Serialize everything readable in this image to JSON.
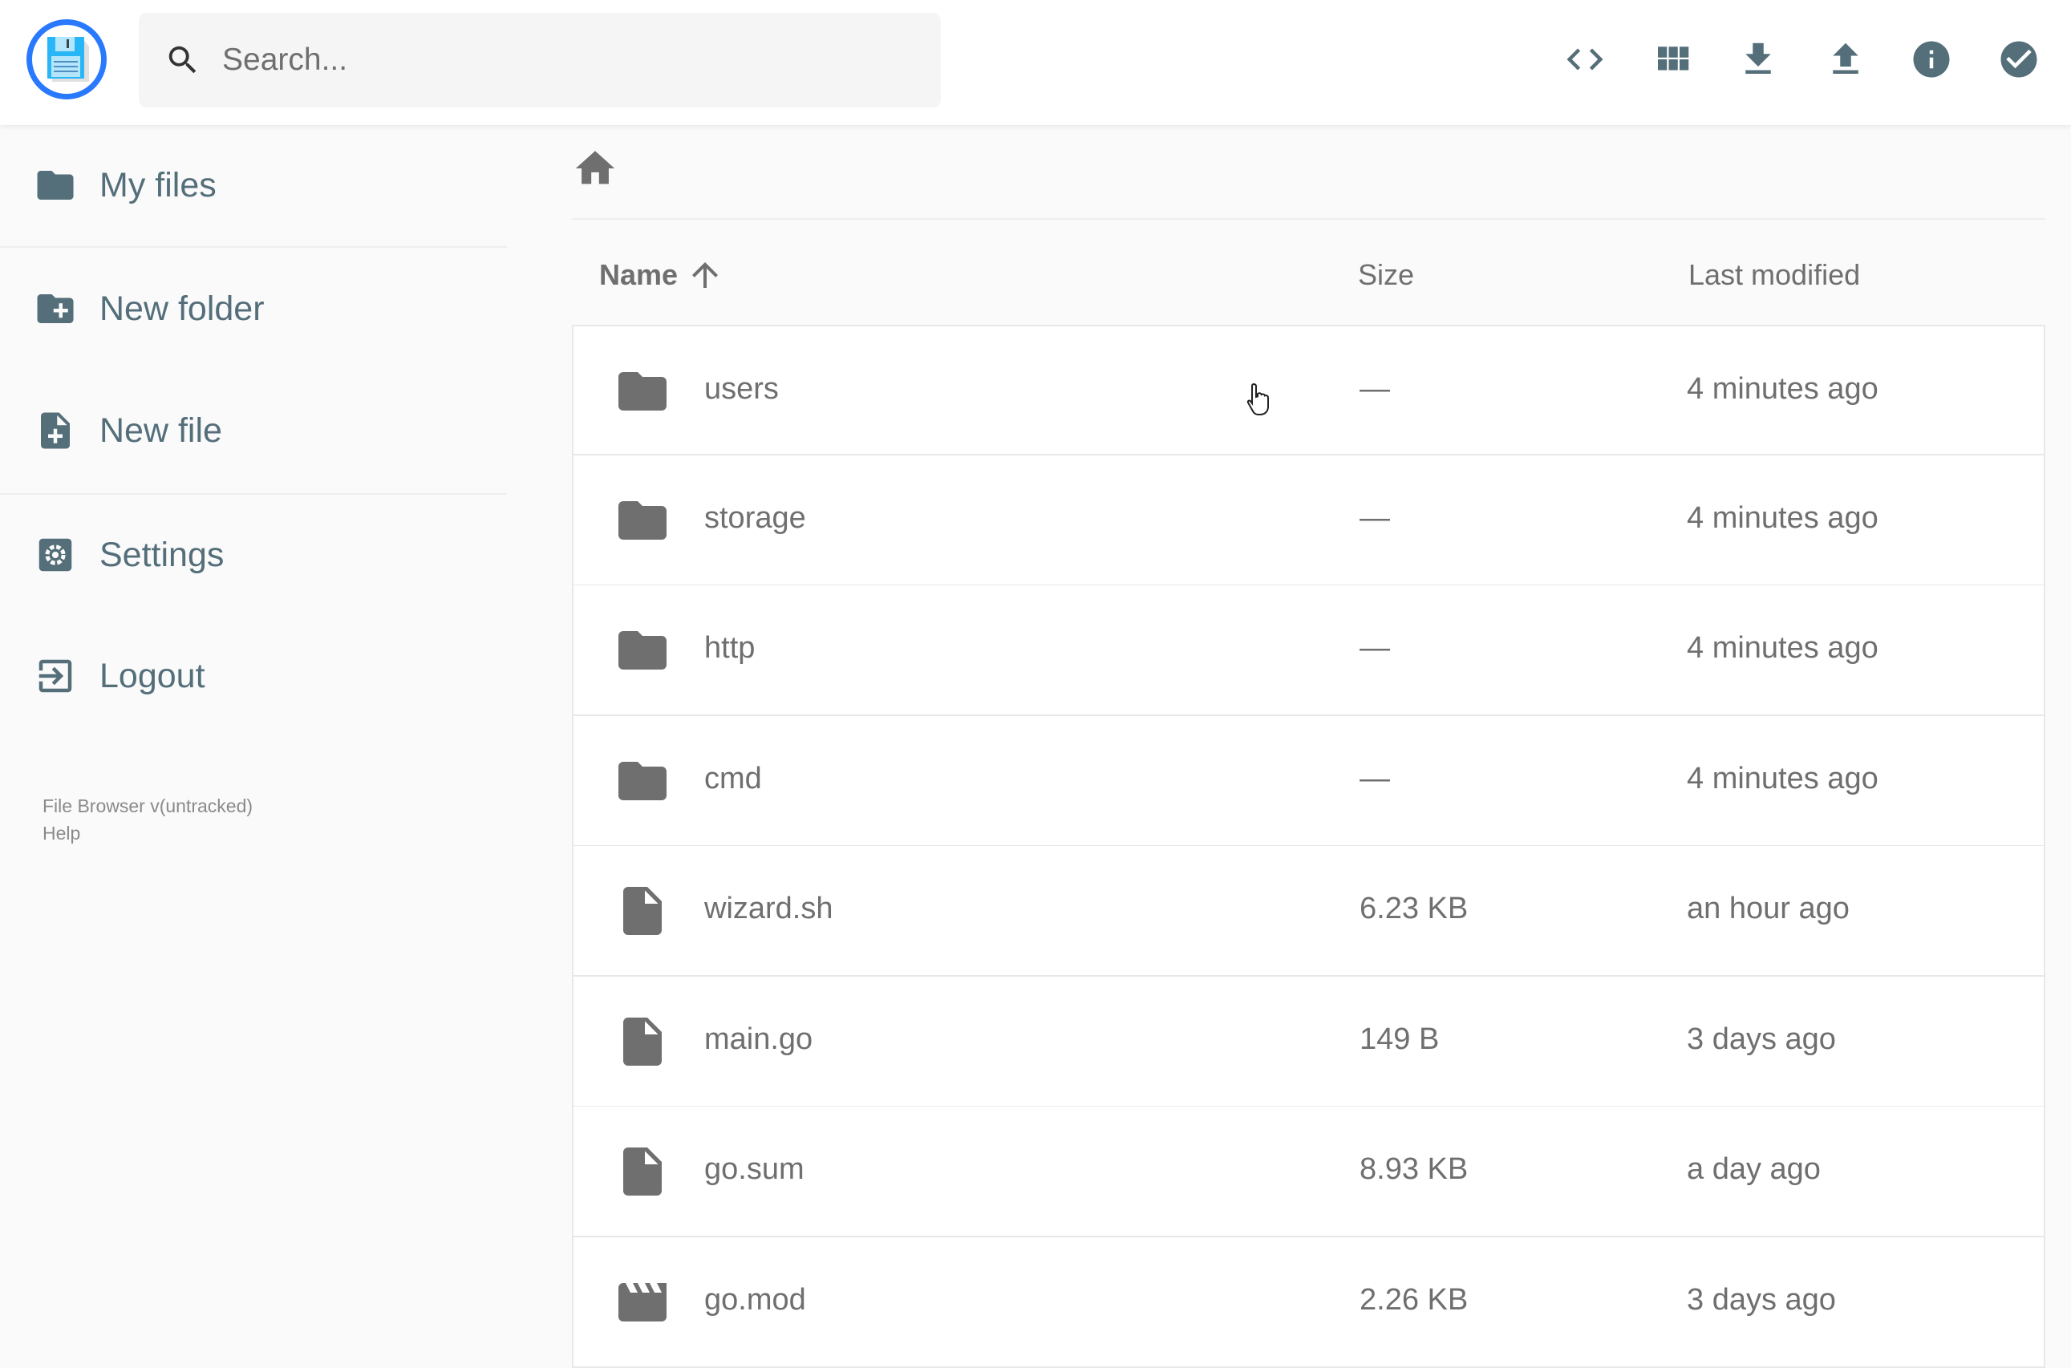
{
  "header": {
    "search_placeholder": "Search...",
    "actions": [
      {
        "icon": "code-icon",
        "label": "Toggle code view"
      },
      {
        "icon": "grid-view-icon",
        "label": "Switch view"
      },
      {
        "icon": "download-icon",
        "label": "Download"
      },
      {
        "icon": "upload-icon",
        "label": "Upload"
      },
      {
        "icon": "info-icon",
        "label": "Info"
      },
      {
        "icon": "check-circle-icon",
        "label": "Select multiple"
      }
    ],
    "icon_color": "#546e7a",
    "logo_ring_color": "#2979ff"
  },
  "sidebar": {
    "items": [
      {
        "label": "My files",
        "icon": "folder-icon"
      },
      {
        "label": "New folder",
        "icon": "create-new-folder-icon"
      },
      {
        "label": "New file",
        "icon": "note-add-icon"
      },
      {
        "label": "Settings",
        "icon": "settings-icon"
      },
      {
        "label": "Logout",
        "icon": "exit-icon"
      }
    ],
    "footer": {
      "version": "File Browser v(untracked)",
      "help": "Help"
    }
  },
  "main": {
    "breadcrumb_icon": "home-icon",
    "columns": {
      "name": "Name",
      "size": "Size",
      "modified": "Last modified",
      "sort": "ascending"
    },
    "rows": [
      {
        "name": "users",
        "type": "folder",
        "size": "—",
        "modified": "4 minutes ago"
      },
      {
        "name": "storage",
        "type": "folder",
        "size": "—",
        "modified": "4 minutes ago"
      },
      {
        "name": "http",
        "type": "folder",
        "size": "—",
        "modified": "4 minutes ago"
      },
      {
        "name": "cmd",
        "type": "folder",
        "size": "—",
        "modified": "4 minutes ago"
      },
      {
        "name": "wizard.sh",
        "type": "file",
        "size": "6.23 KB",
        "modified": "an hour ago"
      },
      {
        "name": "main.go",
        "type": "file",
        "size": "149 B",
        "modified": "3 days ago"
      },
      {
        "name": "go.sum",
        "type": "file",
        "size": "8.93 KB",
        "modified": "a day ago"
      },
      {
        "name": "go.mod",
        "type": "video",
        "size": "2.26 KB",
        "modified": "3 days ago"
      }
    ]
  }
}
